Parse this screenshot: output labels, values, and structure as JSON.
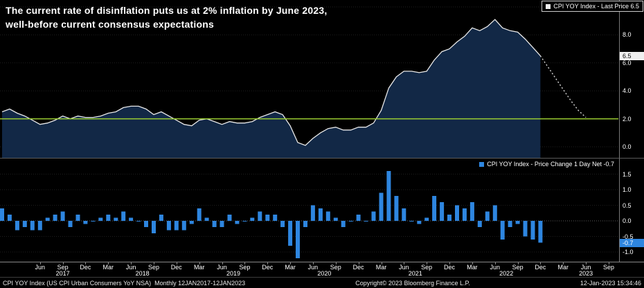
{
  "title": {
    "line1": "The current rate of disinflation puts us at 2% inflation by June 2023,",
    "line2": "well-before current consensus expectations"
  },
  "footer": {
    "left": "CPI YOY Index (US CPI Urban Consumers YoY NSA)  Monthly 12JAN2017-12JAN2023",
    "center": "Copyright© 2023 Bloomberg Finance L.P.",
    "right": "12-Jan-2023 15:34:46"
  },
  "colors": {
    "background": "#000000",
    "area_fill": "#122846",
    "price_line": "#e8e8e8",
    "reference_green": "#9acd32",
    "bar_blue": "#2e86e0",
    "projection": "#d8d8d8",
    "grid": "#1f1f1f",
    "zero_grid": "#5c5c5c"
  },
  "chart_data": [
    {
      "type": "area",
      "name": "CPI YOY Index - Last Price",
      "legend": "CPI YOY Index - Last Price 6.5",
      "last_price": 6.5,
      "last_price_label": "6.5",
      "x_domain": {
        "start": "2017-01",
        "end": "2023-09",
        "freq": "monthly"
      },
      "values": [
        2.5,
        2.7,
        2.4,
        2.2,
        1.9,
        1.6,
        1.7,
        1.9,
        2.2,
        2.0,
        2.2,
        2.1,
        2.1,
        2.2,
        2.4,
        2.5,
        2.8,
        2.9,
        2.9,
        2.7,
        2.3,
        2.5,
        2.2,
        1.9,
        1.6,
        1.5,
        1.9,
        2.0,
        1.8,
        1.6,
        1.8,
        1.7,
        1.7,
        1.8,
        2.1,
        2.3,
        2.5,
        2.3,
        1.5,
        0.3,
        0.1,
        0.6,
        1.0,
        1.3,
        1.4,
        1.2,
        1.2,
        1.4,
        1.4,
        1.7,
        2.6,
        4.2,
        5.0,
        5.4,
        5.4,
        5.3,
        5.4,
        6.2,
        6.8,
        7.0,
        7.5,
        7.9,
        8.5,
        8.3,
        8.6,
        9.1,
        8.5,
        8.3,
        8.2,
        7.7,
        7.1,
        6.5
      ],
      "projection_values": [
        5.7,
        4.9,
        4.1,
        3.3,
        2.6,
        2.1
      ],
      "projection_style": "dashed",
      "reference_line": 2.0,
      "ylim": [
        0,
        10.5
      ],
      "yticks": [
        0.0,
        2.0,
        4.0,
        6.0,
        8.0,
        10.0
      ],
      "legend_position": "top-right",
      "grid": "dotted-horizontal"
    },
    {
      "type": "bar",
      "name": "CPI YOY Index - Price Change 1 Day Net",
      "legend": "CPI YOY Index - Price Change 1 Day Net -0.7",
      "last_change": -0.7,
      "last_change_label": "-0.7",
      "x_domain": {
        "start": "2017-01",
        "end": "2023-09",
        "freq": "monthly"
      },
      "values": [
        0.4,
        0.2,
        -0.3,
        -0.2,
        -0.3,
        -0.3,
        0.1,
        0.2,
        0.3,
        -0.2,
        0.2,
        -0.1,
        0.0,
        0.1,
        0.2,
        0.1,
        0.3,
        0.1,
        0.0,
        -0.2,
        -0.4,
        0.2,
        -0.3,
        -0.3,
        -0.3,
        -0.1,
        0.4,
        0.1,
        -0.2,
        -0.2,
        0.2,
        -0.1,
        0.0,
        0.1,
        0.3,
        0.2,
        0.2,
        -0.2,
        -0.8,
        -1.2,
        -0.2,
        0.5,
        0.4,
        0.3,
        0.1,
        -0.2,
        0.0,
        0.2,
        0.0,
        0.3,
        0.9,
        1.6,
        0.8,
        0.4,
        0.0,
        -0.1,
        0.1,
        0.8,
        0.6,
        0.2,
        0.5,
        0.4,
        0.6,
        -0.2,
        0.3,
        0.5,
        -0.6,
        -0.2,
        -0.1,
        -0.5,
        -0.6,
        -0.7
      ],
      "ylim": [
        -1.25,
        1.75
      ],
      "yticks": [
        -1.0,
        -0.5,
        0.0,
        0.5,
        1.0,
        1.5
      ],
      "legend_position": "top-right",
      "grid": "dotted-horizontal"
    }
  ],
  "x_axis": {
    "month_ticks": [
      {
        "label": "Jun",
        "m": 5
      },
      {
        "label": "Sep",
        "m": 8
      },
      {
        "label": "Dec",
        "m": 11
      },
      {
        "label": "Mar",
        "m": 14
      },
      {
        "label": "Jun",
        "m": 17
      },
      {
        "label": "Sep",
        "m": 20
      },
      {
        "label": "Dec",
        "m": 23
      },
      {
        "label": "Mar",
        "m": 26
      },
      {
        "label": "Jun",
        "m": 29
      },
      {
        "label": "Sep",
        "m": 32
      },
      {
        "label": "Dec",
        "m": 35
      },
      {
        "label": "Mar",
        "m": 38
      },
      {
        "label": "Jun",
        "m": 41
      },
      {
        "label": "Sep",
        "m": 44
      },
      {
        "label": "Dec",
        "m": 47
      },
      {
        "label": "Mar",
        "m": 50
      },
      {
        "label": "Jun",
        "m": 53
      },
      {
        "label": "Sep",
        "m": 56
      },
      {
        "label": "Dec",
        "m": 59
      },
      {
        "label": "Mar",
        "m": 62
      },
      {
        "label": "Jun",
        "m": 65
      },
      {
        "label": "Sep",
        "m": 68
      },
      {
        "label": "Dec",
        "m": 71
      },
      {
        "label": "Mar",
        "m": 74
      },
      {
        "label": "Jun",
        "m": 77
      },
      {
        "label": "Sep",
        "m": 80
      }
    ],
    "year_labels": [
      {
        "label": "2017",
        "m": 8
      },
      {
        "label": "2018",
        "m": 18.5
      },
      {
        "label": "2019",
        "m": 30.5
      },
      {
        "label": "2020",
        "m": 42.5
      },
      {
        "label": "2021",
        "m": 54.5
      },
      {
        "label": "2022",
        "m": 66.5
      },
      {
        "label": "2023",
        "m": 77
      }
    ]
  }
}
